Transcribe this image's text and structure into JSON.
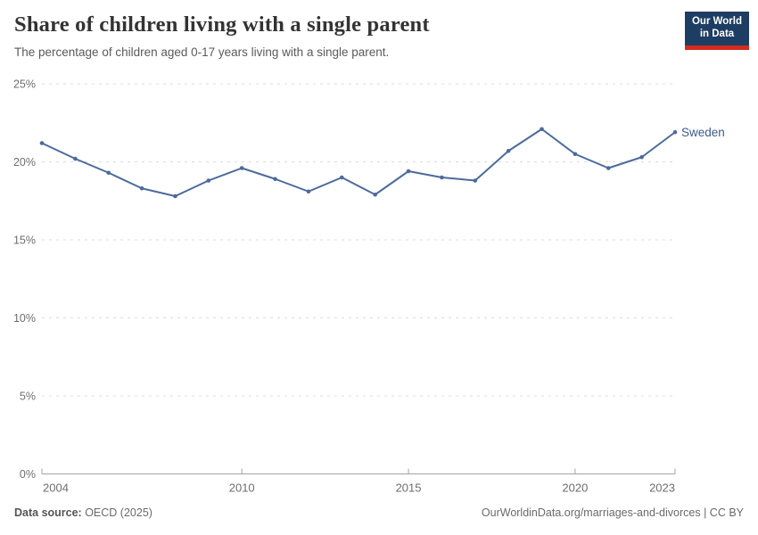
{
  "header": {
    "title": "Share of children living with a single parent",
    "subtitle": "The percentage of children aged 0-17 years living with a single parent."
  },
  "logo": {
    "line1": "Our World",
    "line2": "in Data",
    "bg_color": "#1d3d63",
    "bar_color": "#d42b21"
  },
  "chart_data": {
    "type": "line",
    "title": "Share of children living with a single parent",
    "xlabel": "",
    "ylabel": "",
    "xlim": [
      2004,
      2023
    ],
    "ylim": [
      0,
      25
    ],
    "x_ticks": [
      2004,
      2010,
      2015,
      2020,
      2023
    ],
    "y_ticks": [
      0,
      5,
      10,
      15,
      20,
      25
    ],
    "y_tick_suffix": "%",
    "grid": "horizontal-dashed",
    "legend_position": "end-of-line",
    "series": [
      {
        "name": "Sweden",
        "color": "#4c6a9c",
        "label_color": "#3d5a8e",
        "x": [
          2004,
          2005,
          2006,
          2007,
          2008,
          2009,
          2010,
          2011,
          2012,
          2013,
          2014,
          2015,
          2016,
          2017,
          2018,
          2019,
          2020,
          2021,
          2022,
          2023
        ],
        "values": [
          21.2,
          20.2,
          19.3,
          18.3,
          17.8,
          18.8,
          19.6,
          18.9,
          18.1,
          19.0,
          17.9,
          19.4,
          19.0,
          18.8,
          20.7,
          22.1,
          20.5,
          19.6,
          20.3,
          21.9
        ]
      }
    ]
  },
  "footer": {
    "source_label": "Data source:",
    "source_value": " OECD (2025)",
    "credit": "OurWorldinData.org/marriages-and-divorces | CC BY"
  }
}
